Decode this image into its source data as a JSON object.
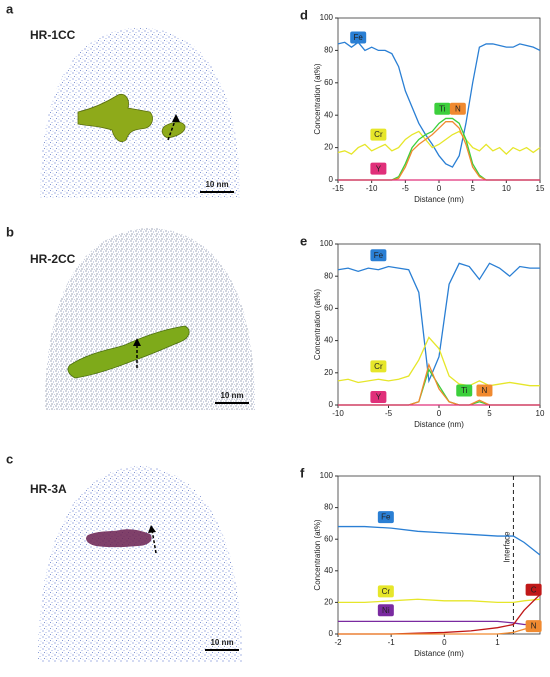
{
  "panels": [
    {
      "letter": "a",
      "label": "HR-1CC",
      "scale_bar": "10 nm"
    },
    {
      "letter": "b",
      "label": "HR-2CC",
      "scale_bar": "10 nm"
    },
    {
      "letter": "c",
      "label": "HR-3A",
      "scale_bar": "10 nm"
    }
  ],
  "chart_data": [
    {
      "type": "line",
      "letter": "d",
      "xlabel": "Distance (nm)",
      "ylabel": "Concentration (at%)",
      "xlim": [
        -15,
        15
      ],
      "xticks": [
        -15,
        -10,
        -5,
        0,
        5,
        10,
        15
      ],
      "ylim": [
        0,
        100
      ],
      "yticks": [
        0,
        20,
        40,
        60,
        80,
        100
      ],
      "x": [
        -15,
        -14,
        -13,
        -12,
        -11,
        -10,
        -9,
        -8,
        -7,
        -6,
        -5,
        -4,
        -3,
        -2,
        -1,
        0,
        1,
        2,
        3,
        4,
        5,
        6,
        7,
        8,
        9,
        10,
        11,
        12,
        13,
        14,
        15
      ],
      "series": [
        {
          "name": "Fe",
          "color": "#2a7fd4",
          "values": [
            84,
            85,
            82,
            85,
            80,
            82,
            80,
            80,
            78,
            70,
            55,
            45,
            35,
            28,
            22,
            15,
            10,
            8,
            15,
            35,
            60,
            82,
            84,
            84,
            83,
            82,
            82,
            84,
            83,
            82,
            80
          ]
        },
        {
          "name": "Cr",
          "color": "#e6e62a",
          "values": [
            17,
            18,
            16,
            20,
            22,
            18,
            20,
            22,
            18,
            20,
            25,
            28,
            30,
            25,
            20,
            22,
            25,
            28,
            30,
            25,
            20,
            18,
            22,
            18,
            20,
            16,
            20,
            18,
            20,
            17,
            20
          ]
        },
        {
          "name": "Ti",
          "color": "#3ccf3c",
          "values": [
            0,
            0,
            0,
            0,
            0,
            0,
            0,
            0,
            0,
            2,
            10,
            20,
            25,
            28,
            30,
            35,
            38,
            38,
            35,
            25,
            10,
            3,
            0,
            0,
            0,
            0,
            0,
            0,
            0,
            0,
            0
          ]
        },
        {
          "name": "N",
          "color": "#f08a30",
          "values": [
            0,
            0,
            0,
            0,
            0,
            0,
            0,
            0,
            0,
            1,
            8,
            18,
            22,
            25,
            28,
            32,
            36,
            36,
            32,
            22,
            8,
            2,
            0,
            0,
            0,
            0,
            0,
            0,
            0,
            0,
            0
          ]
        },
        {
          "name": "Y",
          "color": "#e0307a",
          "values": [
            0,
            0,
            0,
            0,
            0,
            0,
            0,
            0,
            0,
            0,
            0,
            0,
            0,
            0,
            0,
            0,
            0,
            0,
            0,
            0,
            0,
            0,
            0,
            0,
            0,
            0,
            0,
            0,
            0,
            0,
            0
          ]
        }
      ]
    },
    {
      "type": "line",
      "letter": "e",
      "xlabel": "Distance (nm)",
      "ylabel": "Concentration (at%)",
      "xlim": [
        -10,
        10
      ],
      "xticks": [
        -10,
        -5,
        0,
        5,
        10
      ],
      "ylim": [
        0,
        100
      ],
      "yticks": [
        0,
        20,
        40,
        60,
        80,
        100
      ],
      "x": [
        -10,
        -9,
        -8,
        -7,
        -6,
        -5,
        -4,
        -3,
        -2,
        -1,
        0,
        1,
        2,
        3,
        4,
        5,
        6,
        7,
        8,
        9,
        10
      ],
      "series": [
        {
          "name": "Fe",
          "color": "#2a7fd4",
          "values": [
            84,
            85,
            83,
            85,
            84,
            86,
            85,
            84,
            70,
            15,
            30,
            75,
            88,
            86,
            78,
            88,
            85,
            80,
            86,
            85,
            85
          ]
        },
        {
          "name": "Cr",
          "color": "#e6e62a",
          "values": [
            15,
            16,
            14,
            15,
            16,
            15,
            16,
            18,
            28,
            42,
            35,
            18,
            13,
            12,
            15,
            12,
            13,
            14,
            13,
            12,
            12
          ]
        },
        {
          "name": "Ti",
          "color": "#3ccf3c",
          "values": [
            0,
            0,
            0,
            0,
            0,
            0,
            0,
            0,
            2,
            22,
            12,
            2,
            0,
            0,
            2,
            0,
            0,
            0,
            0,
            0,
            0
          ]
        },
        {
          "name": "N",
          "color": "#f08a30",
          "values": [
            0,
            0,
            0,
            0,
            0,
            0,
            0,
            0,
            2,
            25,
            10,
            2,
            0,
            0,
            3,
            0,
            0,
            0,
            0,
            0,
            0
          ]
        },
        {
          "name": "Y",
          "color": "#e0307a",
          "values": [
            0,
            0,
            0,
            0,
            0,
            0,
            0,
            0,
            0,
            0,
            0,
            0,
            0,
            0,
            0,
            0,
            0,
            0,
            0,
            0,
            0
          ]
        }
      ]
    },
    {
      "type": "line",
      "letter": "f",
      "xlabel": "Distance (nm)",
      "ylabel": "Concentration (at%)",
      "xlim": [
        -2,
        1.8
      ],
      "xticks": [
        -2,
        -1,
        0,
        1
      ],
      "ylim": [
        0,
        100
      ],
      "yticks": [
        0,
        20,
        40,
        60,
        80,
        100
      ],
      "annotations": [
        {
          "text": "Interface",
          "x": 1.3
        }
      ],
      "x": [
        -2,
        -1.5,
        -1,
        -0.5,
        0,
        0.5,
        1,
        1.3,
        1.5,
        1.8
      ],
      "series": [
        {
          "name": "Fe",
          "color": "#2a7fd4",
          "values": [
            68,
            68,
            67,
            65,
            64,
            63,
            62,
            62,
            58,
            50
          ]
        },
        {
          "name": "Cr",
          "color": "#e6e62a",
          "values": [
            20,
            20,
            21,
            22,
            21,
            21,
            20,
            20,
            21,
            22
          ]
        },
        {
          "name": "Ni",
          "color": "#7a2aa0",
          "values": [
            8,
            8,
            8,
            8,
            8,
            8,
            8,
            7,
            6,
            6
          ]
        },
        {
          "name": "C",
          "color": "#c01818",
          "values": [
            0,
            0,
            0,
            0.5,
            1,
            2,
            4,
            6,
            15,
            25
          ]
        },
        {
          "name": "N",
          "color": "#f08a30",
          "values": [
            0,
            0,
            0,
            0,
            0,
            0,
            0,
            1,
            3,
            6
          ]
        }
      ]
    }
  ]
}
